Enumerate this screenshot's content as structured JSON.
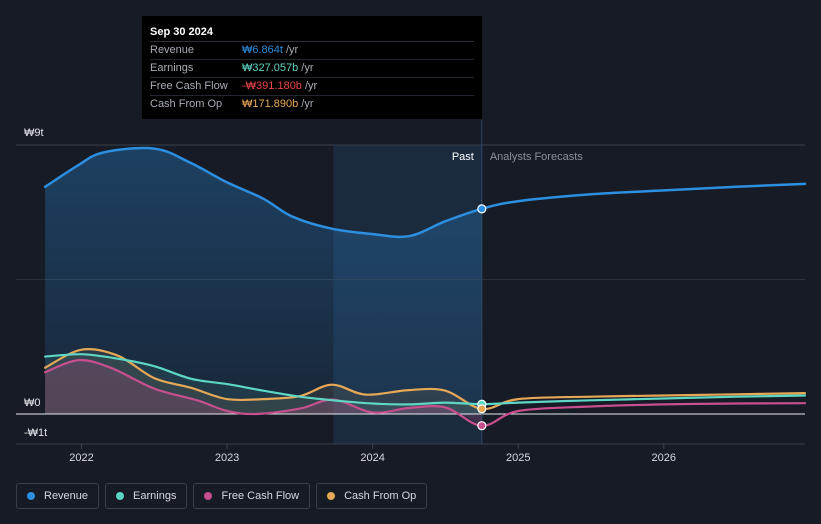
{
  "chart_data": {
    "type": "line",
    "currency_unit": "₩",
    "x_ticks": [
      "2022",
      "2023",
      "2024",
      "2025",
      "2026"
    ],
    "y_ticks": [
      {
        "label": "₩9t",
        "value": 9
      },
      {
        "label": "₩0",
        "value": 0
      },
      {
        "label": "-₩1t",
        "value": -1
      }
    ],
    "ylim": [
      -1,
      9
    ],
    "xlim": [
      2021.55,
      2026.97
    ],
    "past_label": "Past",
    "forecast_label": "Analysts Forecasts",
    "past_boundary": 2024.75,
    "highlight_start": 2023.73,
    "series": [
      {
        "name": "Revenue",
        "color": "#2d8fe0",
        "x": [
          2021.75,
          2021.97,
          2022.15,
          2022.5,
          2022.75,
          2023.0,
          2023.25,
          2023.45,
          2023.72,
          2024.0,
          2024.25,
          2024.5,
          2024.75,
          2025.0,
          2025.5,
          2026.0,
          2026.5,
          2026.97
        ],
        "values": [
          7.6,
          8.3,
          8.75,
          8.88,
          8.4,
          7.75,
          7.2,
          6.6,
          6.2,
          6.02,
          5.95,
          6.45,
          6.864,
          7.12,
          7.35,
          7.48,
          7.6,
          7.7
        ]
      },
      {
        "name": "Earnings",
        "color": "#5ed6c4",
        "x": [
          2021.75,
          2022.0,
          2022.25,
          2022.5,
          2022.75,
          2023.0,
          2023.25,
          2023.5,
          2023.75,
          2024.0,
          2024.25,
          2024.5,
          2024.75,
          2025.0,
          2025.5,
          2026.0,
          2026.5,
          2026.97
        ],
        "values": [
          1.92,
          2.0,
          1.85,
          1.6,
          1.18,
          1.0,
          0.78,
          0.58,
          0.45,
          0.35,
          0.32,
          0.38,
          0.327,
          0.38,
          0.46,
          0.52,
          0.58,
          0.62
        ]
      },
      {
        "name": "Free Cash Flow",
        "color": "#c84f8e",
        "x": [
          2021.75,
          2021.98,
          2022.2,
          2022.5,
          2022.8,
          2023.0,
          2023.2,
          2023.5,
          2023.73,
          2024.0,
          2024.25,
          2024.5,
          2024.75,
          2025.0,
          2025.5,
          2026.0,
          2026.5,
          2026.97
        ],
        "values": [
          1.4,
          1.8,
          1.55,
          0.85,
          0.45,
          0.1,
          0.0,
          0.18,
          0.48,
          0.05,
          0.2,
          0.22,
          -0.391,
          0.1,
          0.25,
          0.32,
          0.35,
          0.36
        ]
      },
      {
        "name": "Cash From Op",
        "color": "#e6a857",
        "x": [
          2021.75,
          2022.0,
          2022.25,
          2022.5,
          2022.75,
          2023.0,
          2023.25,
          2023.5,
          2023.72,
          2023.95,
          2024.25,
          2024.5,
          2024.75,
          2025.0,
          2025.5,
          2026.0,
          2026.5,
          2026.97
        ],
        "values": [
          1.55,
          2.15,
          1.95,
          1.2,
          0.88,
          0.5,
          0.5,
          0.6,
          0.98,
          0.65,
          0.8,
          0.78,
          0.172,
          0.5,
          0.58,
          0.62,
          0.66,
          0.7
        ]
      }
    ],
    "highlight_point": {
      "x": 2024.75
    }
  },
  "tooltip": {
    "date": "Sep 30 2024",
    "unit": "/yr",
    "rows": [
      {
        "label": "Revenue",
        "value": "₩6.864t",
        "color": "#2d8fe0"
      },
      {
        "label": "Earnings",
        "value": "₩327.057b",
        "color": "#5ed6c4"
      },
      {
        "label": "Free Cash Flow",
        "value": "-₩391.180b",
        "color": "#e8474b"
      },
      {
        "label": "Cash From Op",
        "value": "₩171.890b",
        "color": "#e6a857"
      }
    ]
  },
  "legend": [
    {
      "label": "Revenue",
      "color": "#2d8fe0"
    },
    {
      "label": "Earnings",
      "color": "#5ed6c4"
    },
    {
      "label": "Free Cash Flow",
      "color": "#c84f8e"
    },
    {
      "label": "Cash From Op",
      "color": "#e6a857"
    }
  ]
}
